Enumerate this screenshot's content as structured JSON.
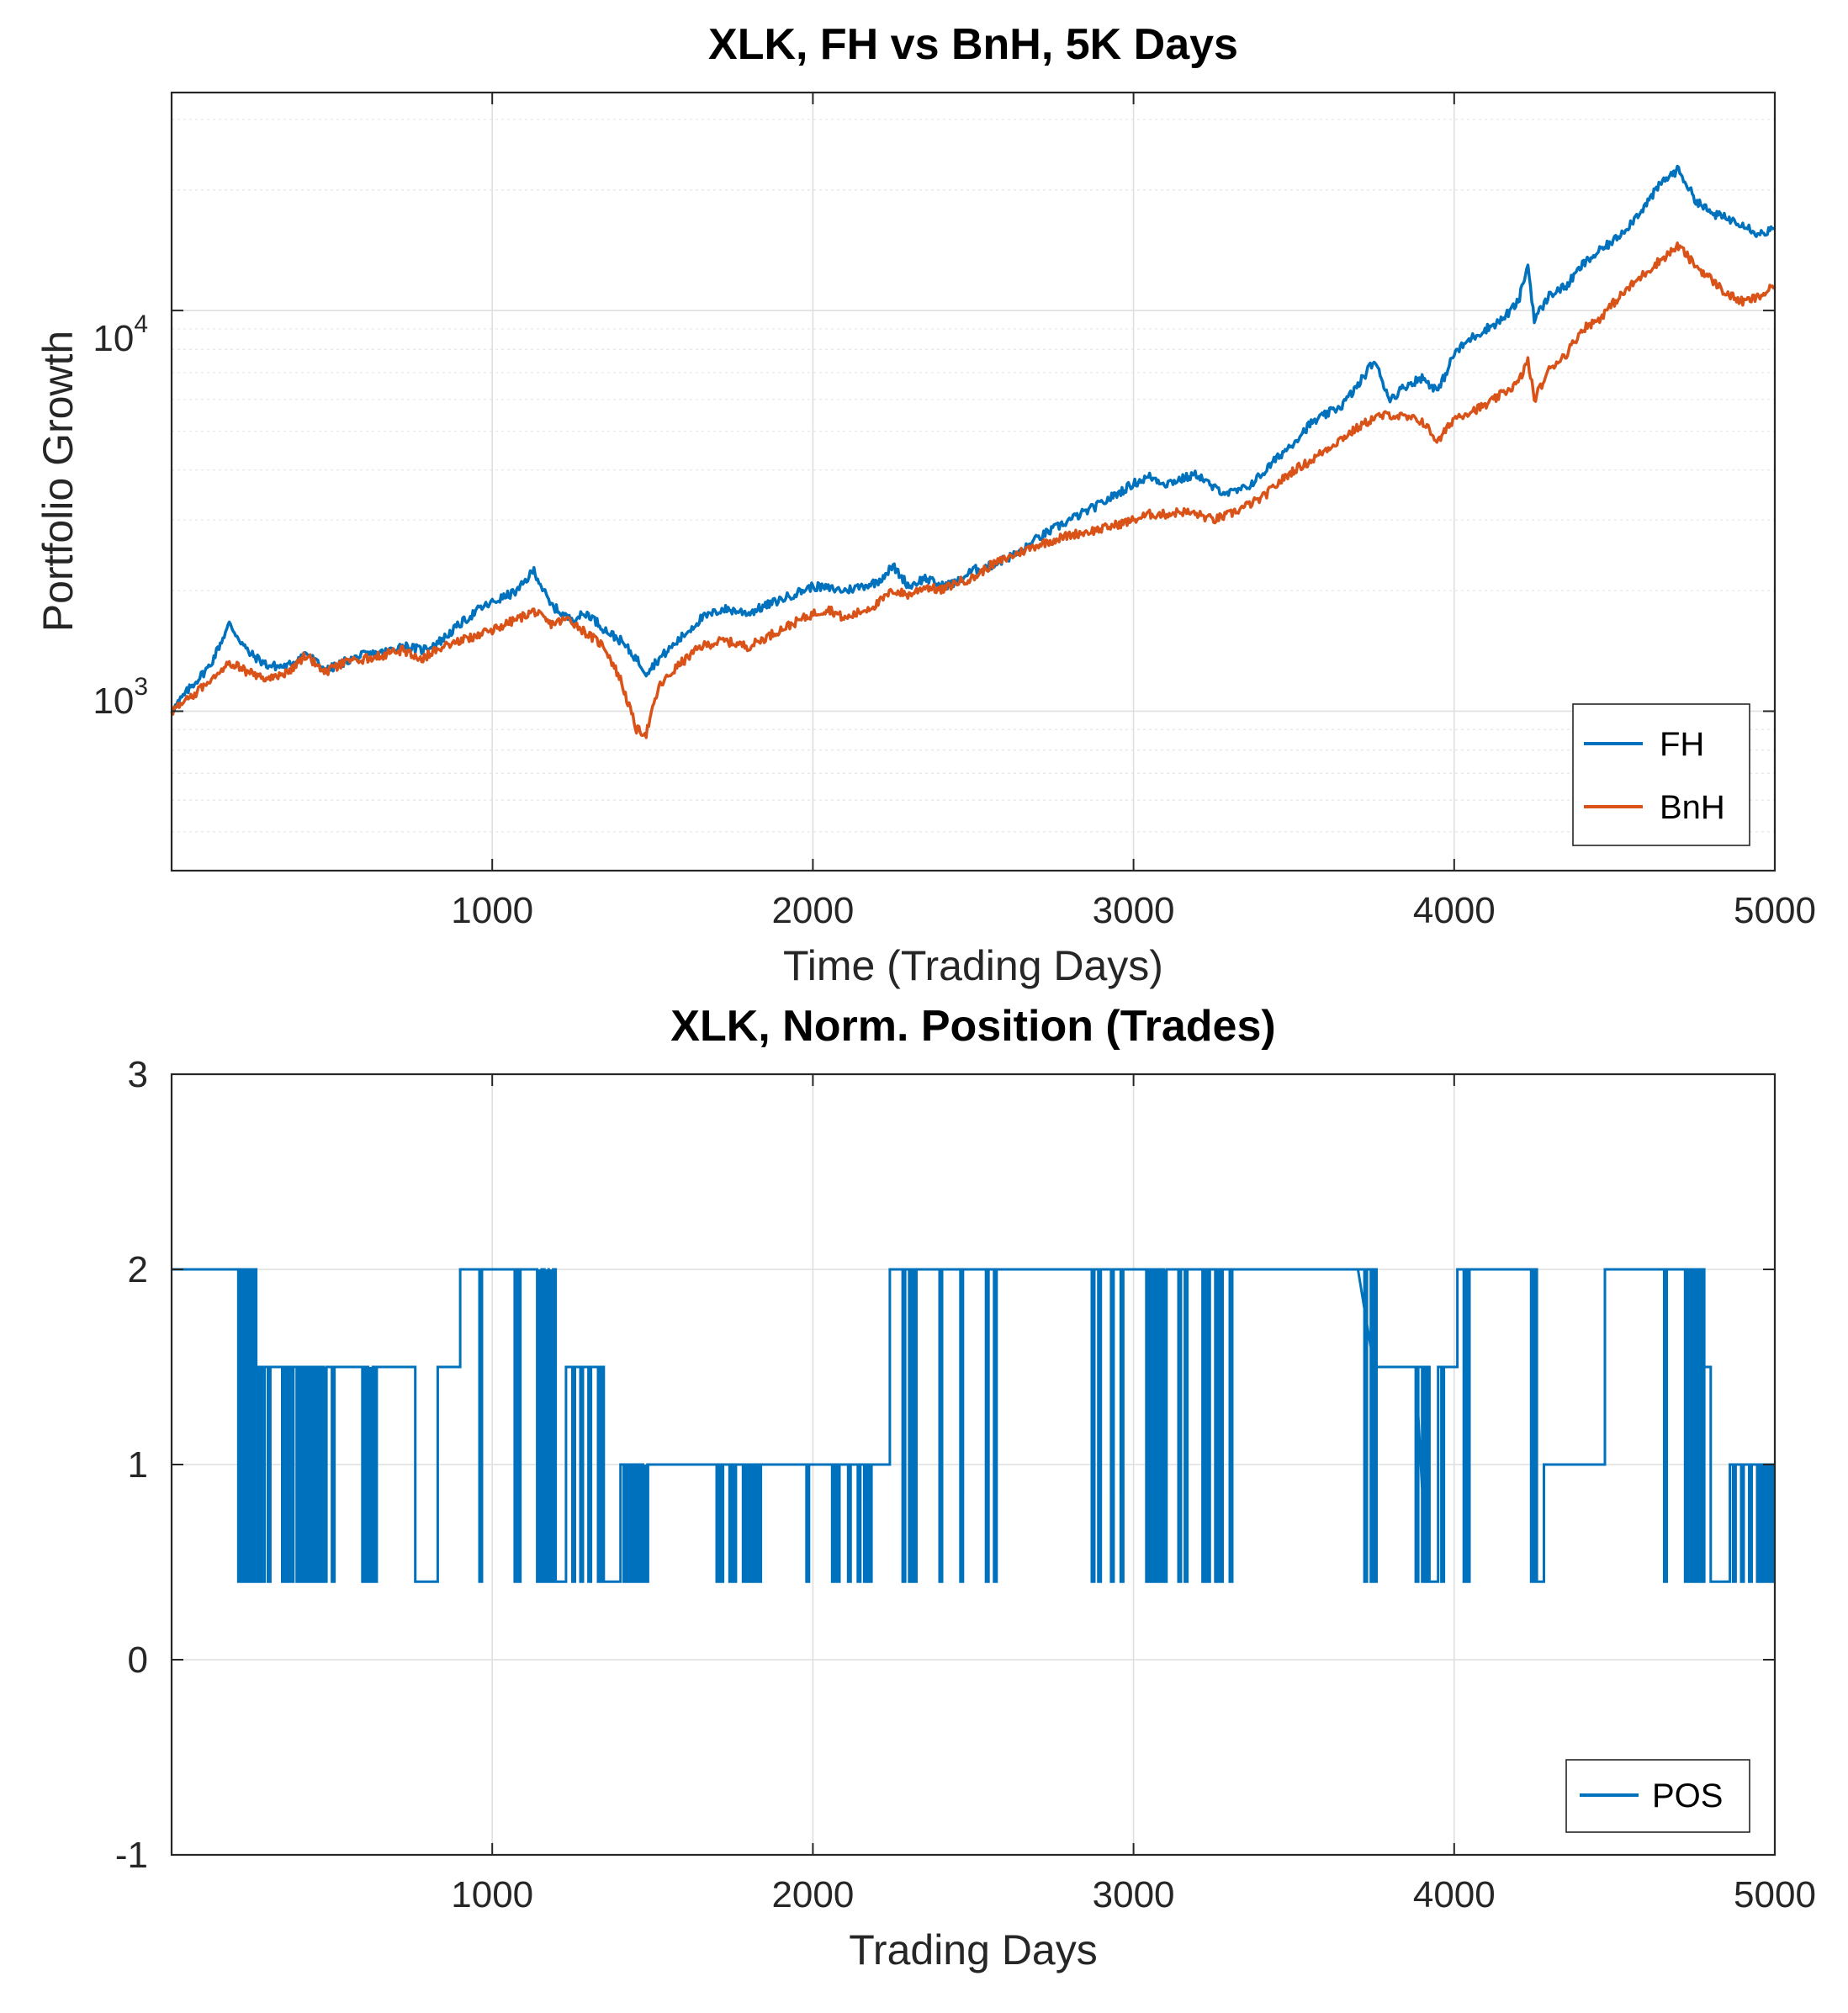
{
  "chart_data": [
    {
      "type": "line",
      "title": "XLK, FH vs BnH, 5K Days",
      "xlabel": "Time (Trading Days)",
      "ylabel": "Portfolio Growth",
      "yscale": "log",
      "xlim": [
        0,
        5000
      ],
      "ylim": [
        400,
        35000
      ],
      "xticks": [
        1000,
        2000,
        3000,
        4000,
        5000
      ],
      "xtick_labels": [
        "1000",
        "2000",
        "3000",
        "4000",
        "5000"
      ],
      "yticks": [
        1000,
        10000
      ],
      "ytick_labels": [
        {
          "base": "10",
          "exp": "3"
        },
        {
          "base": "10",
          "exp": "4"
        }
      ],
      "grid": true,
      "legend_position": "bottom-right",
      "series": [
        {
          "name": "FH",
          "color": "#0072BD",
          "x": [
            0,
            60,
            120,
            180,
            240,
            300,
            360,
            420,
            480,
            540,
            600,
            660,
            720,
            780,
            840,
            900,
            960,
            1020,
            1080,
            1130,
            1180,
            1240,
            1300,
            1350,
            1400,
            1450,
            1480,
            1520,
            1580,
            1650,
            1720,
            1800,
            1900,
            2000,
            2100,
            2200,
            2250,
            2300,
            2350,
            2400,
            2450,
            2500,
            2550,
            2600,
            2650,
            2700,
            2800,
            2900,
            3000,
            3050,
            3100,
            3150,
            3200,
            3250,
            3300,
            3350,
            3400,
            3450,
            3500,
            3550,
            3600,
            3650,
            3700,
            3750,
            3800,
            3850,
            3900,
            3950,
            4000,
            4050,
            4100,
            4150,
            4200,
            4230,
            4250,
            4300,
            4350,
            4400,
            4450,
            4500,
            4550,
            4600,
            4650,
            4700,
            4750,
            4800,
            4850,
            4900,
            4950,
            5000
          ],
          "values": [
            1000,
            1150,
            1300,
            1650,
            1400,
            1300,
            1290,
            1400,
            1260,
            1330,
            1380,
            1400,
            1460,
            1420,
            1500,
            1650,
            1800,
            1900,
            2000,
            2250,
            1850,
            1700,
            1750,
            1600,
            1500,
            1350,
            1250,
            1350,
            1500,
            1700,
            1800,
            1760,
            1900,
            2050,
            2000,
            2100,
            2300,
            2050,
            2150,
            2050,
            2100,
            2250,
            2300,
            2400,
            2500,
            2700,
            3000,
            3300,
            3700,
            3850,
            3700,
            3800,
            3900,
            3600,
            3500,
            3600,
            3900,
            4300,
            4700,
            5200,
            5500,
            5800,
            6500,
            7500,
            6000,
            6500,
            6800,
            6300,
            7800,
            8500,
            9000,
            9500,
            10500,
            13000,
            9500,
            11000,
            11500,
            13000,
            14000,
            15000,
            16500,
            18500,
            21000,
            22500,
            19000,
            17500,
            17000,
            16500,
            15500,
            16000
          ]
        },
        {
          "name": "BnH",
          "color": "#D95319",
          "x": [
            0,
            60,
            120,
            180,
            240,
            300,
            360,
            420,
            480,
            540,
            600,
            660,
            720,
            780,
            840,
            900,
            960,
            1020,
            1080,
            1130,
            1180,
            1240,
            1300,
            1350,
            1400,
            1450,
            1480,
            1520,
            1580,
            1650,
            1720,
            1800,
            1900,
            2000,
            2050,
            2100,
            2200,
            2250,
            2300,
            2350,
            2400,
            2450,
            2500,
            2550,
            2600,
            2650,
            2700,
            2800,
            2900,
            3000,
            3050,
            3100,
            3150,
            3200,
            3250,
            3300,
            3350,
            3400,
            3450,
            3500,
            3550,
            3600,
            3650,
            3700,
            3750,
            3800,
            3850,
            3900,
            3950,
            4000,
            4050,
            4100,
            4150,
            4200,
            4230,
            4250,
            4300,
            4350,
            4400,
            4450,
            4500,
            4550,
            4600,
            4650,
            4700,
            4750,
            4800,
            4850,
            4900,
            4950,
            5000
          ],
          "values": [
            1000,
            1080,
            1200,
            1330,
            1250,
            1200,
            1250,
            1380,
            1250,
            1320,
            1350,
            1380,
            1420,
            1350,
            1450,
            1500,
            1550,
            1620,
            1700,
            1780,
            1650,
            1700,
            1550,
            1450,
            1200,
            900,
            880,
            1150,
            1300,
            1450,
            1500,
            1450,
            1600,
            1750,
            1800,
            1700,
            1850,
            2000,
            1950,
            2050,
            2000,
            2100,
            2150,
            2300,
            2400,
            2500,
            2600,
            2750,
            2850,
            3000,
            3100,
            3100,
            3150,
            3100,
            3000,
            3100,
            3250,
            3400,
            3700,
            4000,
            4200,
            4500,
            4800,
            5100,
            5400,
            5500,
            5400,
            5300,
            4700,
            5400,
            5600,
            5800,
            6200,
            6600,
            7500,
            6000,
            7200,
            7800,
            9000,
            9500,
            10500,
            11500,
            12500,
            13500,
            14500,
            13000,
            12000,
            11000,
            10500,
            10800,
            11500
          ]
        }
      ]
    },
    {
      "type": "line",
      "title": "XLK, Norm. Position (Trades)",
      "xlabel": "Trading Days",
      "ylabel": "",
      "xlim": [
        0,
        5000
      ],
      "ylim": [
        -1,
        3
      ],
      "xticks": [
        1000,
        2000,
        3000,
        4000,
        5000
      ],
      "xtick_labels": [
        "1000",
        "2000",
        "3000",
        "4000",
        "5000"
      ],
      "yticks": [
        -1,
        0,
        1,
        2,
        3
      ],
      "ytick_labels": [
        "-1",
        "0",
        "1",
        "2",
        "3"
      ],
      "grid": true,
      "legend_position": "bottom-right",
      "series": [
        {
          "name": "POS",
          "color": "#0072BD",
          "segments": [
            {
              "x0": 0,
              "x1": 200,
              "level": 2
            },
            {
              "x0": 200,
              "x1": 260,
              "level": 2,
              "spikes": [
                208,
                220,
                232,
                246,
                256
              ]
            },
            {
              "x0": 260,
              "x1": 340,
              "level": 1.5,
              "spikes": [
                270,
                282,
                300
              ]
            },
            {
              "x0": 340,
              "x1": 480,
              "level": 1.5,
              "spikes": [
                345,
                360,
                372,
                390,
                405,
                418,
                432,
                445,
                460,
                475
              ]
            },
            {
              "x0": 480,
              "x1": 760,
              "level": 1.5,
              "spikes": [
                500,
                595,
                605,
                612,
                620,
                632
              ]
            },
            {
              "x0": 760,
              "x1": 830,
              "level": 0.4
            },
            {
              "x0": 830,
              "x1": 900,
              "level": 1.5
            },
            {
              "x0": 900,
              "x1": 1150,
              "level": 2,
              "spikes": [
                960,
                1070,
                1080,
                1140,
                1148,
                1155
              ]
            },
            {
              "x0": 1150,
              "x1": 1190,
              "level": 2,
              "spikes": [
                1160,
                1168,
                1176,
                1184,
                1190
              ]
            },
            {
              "x0": 1190,
              "x1": 1230,
              "level": 0.4
            },
            {
              "x0": 1230,
              "x1": 1300,
              "level": 1.5,
              "spikes": [
                1250,
                1275,
                1300
              ]
            },
            {
              "x0": 1300,
              "x1": 1340,
              "level": 1.5,
              "spikes": [
                1330,
                1340
              ]
            },
            {
              "x0": 1340,
              "x1": 1400,
              "level": 0.4
            },
            {
              "x0": 1400,
              "x1": 1480,
              "level": 1,
              "spikes": [
                1410,
                1420,
                1432,
                1442,
                1452,
                1462,
                1470,
                1478
              ]
            },
            {
              "x0": 1480,
              "x1": 1700,
              "level": 1,
              "spikes": [
                1700,
                1712,
                1740,
                1752,
                1782,
                1792,
                1800,
                1815,
                1830
              ]
            },
            {
              "x0": 1830,
              "x1": 2200,
              "level": 1,
              "spikes": [
                1980,
                2060,
                2075,
                2110,
                2140,
                2160,
                2175
              ]
            },
            {
              "x0": 2200,
              "x1": 2240,
              "level": 1
            },
            {
              "x0": 2240,
              "x1": 2280,
              "level": 2,
              "spikes": [
                2280,
                2300,
                2315
              ]
            },
            {
              "x0": 2315,
              "x1": 2440,
              "level": 2,
              "spikes": [
                2395,
                2460,
                2540,
                2565
              ]
            },
            {
              "x0": 2565,
              "x1": 3100,
              "level": 2,
              "spikes": [
                2870,
                2890,
                2930,
                2960,
                3040,
                3055,
                3070,
                3082,
                3095
              ]
            },
            {
              "x0": 3100,
              "x1": 3300,
              "level": 2,
              "spikes": [
                3140,
                3160,
                3215,
                3230,
                3255,
                3270,
                3300
              ]
            },
            {
              "x0": 3300,
              "x1": 3700,
              "level": 2,
              "spikes": [
                3720,
                3740,
                3750
              ]
            },
            {
              "x0": 3750,
              "x1": 3880,
              "level": 1.5,
              "spikes": [
                3880,
                3900,
                3915
              ]
            },
            {
              "x0": 3915,
              "x1": 3950,
              "level": 0.4
            },
            {
              "x0": 3950,
              "x1": 4010,
              "level": 1.5,
              "spikes": [
                3960
              ]
            },
            {
              "x0": 4010,
              "x1": 4240,
              "level": 2,
              "spikes": [
                4030,
                4040,
                4240,
                4250
              ]
            },
            {
              "x0": 4250,
              "x1": 4280,
              "level": 0.4
            },
            {
              "x0": 4280,
              "x1": 4470,
              "level": 1
            },
            {
              "x0": 4470,
              "x1": 4750,
              "level": 2,
              "spikes": [
                4655,
                4720,
                4735,
                4748,
                4760,
                4772
              ]
            },
            {
              "x0": 4772,
              "x1": 4800,
              "level": 1.5
            },
            {
              "x0": 4800,
              "x1": 4860,
              "level": 0.4
            },
            {
              "x0": 4860,
              "x1": 5000,
              "level": 1,
              "spikes": [
                4870,
                4895,
                4920,
                4945,
                4960,
                4975,
                4990
              ]
            }
          ]
        }
      ]
    }
  ]
}
